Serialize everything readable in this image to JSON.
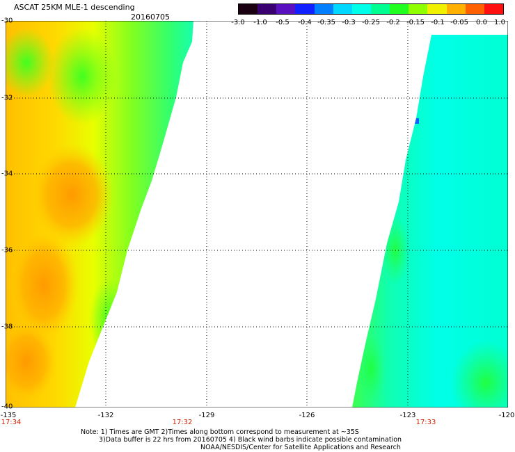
{
  "header": {
    "title": "ASCAT 25KM MLE-1 descending",
    "date": "20160705"
  },
  "colorbar": {
    "labels": [
      "-3.0",
      "-1.0",
      "-0.5",
      "-0.4",
      "-0.35",
      "-0.3",
      "-0.25",
      "-0.2",
      "-0.15",
      "-0.1",
      "-0.05",
      "0.0",
      "1.0"
    ],
    "colors": [
      "#1a0010",
      "#3a0070",
      "#5a10c0",
      "#1020ff",
      "#0080ff",
      "#00d8ff",
      "#00ffe8",
      "#00ff90",
      "#20ff20",
      "#90ff00",
      "#f0f000",
      "#ffb000",
      "#ff6000",
      "#ff1010"
    ]
  },
  "map": {
    "y_labels": [
      "-30",
      "-32",
      "-34",
      "-36",
      "-38",
      "-40"
    ],
    "x_labels": [
      "-135",
      "-132",
      "-129",
      "-126",
      "-123",
      "-120"
    ],
    "times": [
      "17:34",
      "17:32",
      "17:33"
    ],
    "lon_range": [
      -135,
      -120
    ],
    "lat_range": [
      -30,
      -40
    ],
    "grid_lats": [
      -32,
      -34,
      -36,
      -38
    ],
    "grid_lons": [
      -132,
      -129,
      -126,
      -123
    ]
  },
  "notes": [
    "Note: 1) Times are GMT 2)Times along bottom correspond to measurement at ~35S",
    "3)Data buffer is 22 hrs from 20160705 4) Black wind barbs indicate possible contamination",
    "NOAA/NESDIS/Center for Satellite Applications and Research"
  ]
}
